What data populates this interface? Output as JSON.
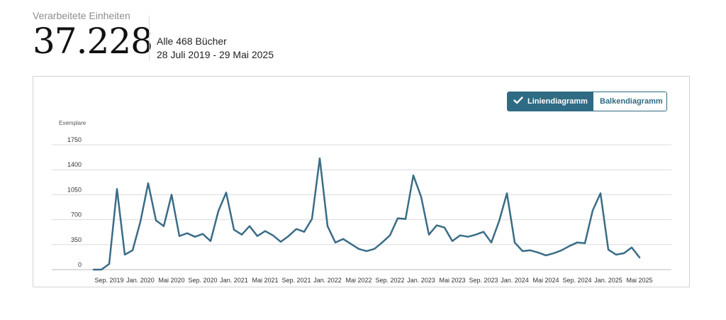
{
  "header": {
    "metric_label": "Verarbeitete Einheiten",
    "metric_value": "37.228",
    "scope": "Alle 468 Bücher",
    "date_range": "28 Juli 2019 - 29 Mai 2025"
  },
  "toggle": {
    "line_label": "Liniendiagramm",
    "bar_label": "Balkendiagramm",
    "selected": "line"
  },
  "colors": {
    "accent": "#2f6b84",
    "line": "#3a6c87",
    "grid": "#d9dcdf"
  },
  "chart_data": {
    "type": "line",
    "ylabel": "Exemplare",
    "ylim": [
      0,
      1750
    ],
    "yticks": [
      0,
      350,
      700,
      1050,
      1400,
      1750
    ],
    "xticks": [
      "Sep. 2019",
      "Jan. 2020",
      "Mai 2020",
      "Sep. 2020",
      "Jan. 2021",
      "Mai 2021",
      "Sep. 2021",
      "Jan. 2022",
      "Mai 2022",
      "Sep. 2022",
      "Jan. 2023",
      "Mai 2023",
      "Sep. 2023",
      "Jan. 2024",
      "Mai 2024",
      "Sep. 2024",
      "Jan. 2025",
      "Mai 2025"
    ],
    "x": [
      "2019-07",
      "2019-08",
      "2019-09",
      "2019-10",
      "2019-11",
      "2019-12",
      "2020-01",
      "2020-02",
      "2020-03",
      "2020-04",
      "2020-05",
      "2020-06",
      "2020-07",
      "2020-08",
      "2020-09",
      "2020-10",
      "2020-11",
      "2020-12",
      "2021-01",
      "2021-02",
      "2021-03",
      "2021-04",
      "2021-05",
      "2021-06",
      "2021-07",
      "2021-08",
      "2021-09",
      "2021-10",
      "2021-11",
      "2021-12",
      "2022-01",
      "2022-02",
      "2022-03",
      "2022-04",
      "2022-05",
      "2022-06",
      "2022-07",
      "2022-08",
      "2022-09",
      "2022-10",
      "2022-11",
      "2022-12",
      "2023-01",
      "2023-02",
      "2023-03",
      "2023-04",
      "2023-05",
      "2023-06",
      "2023-07",
      "2023-08",
      "2023-09",
      "2023-10",
      "2023-11",
      "2023-12",
      "2024-01",
      "2024-02",
      "2024-03",
      "2024-04",
      "2024-05",
      "2024-06",
      "2024-07",
      "2024-08",
      "2024-09",
      "2024-10",
      "2024-11",
      "2024-12",
      "2025-01",
      "2025-02",
      "2025-03",
      "2025-04",
      "2025-05"
    ],
    "series": [
      {
        "values": [
          0,
          0,
          80,
          1130,
          210,
          270,
          670,
          1210,
          690,
          610,
          1050,
          470,
          510,
          460,
          500,
          400,
          820,
          1080,
          560,
          490,
          610,
          470,
          540,
          480,
          390,
          470,
          570,
          530,
          710,
          1560,
          610,
          380,
          430,
          360,
          290,
          260,
          290,
          380,
          480,
          720,
          710,
          1320,
          1020,
          490,
          620,
          590,
          400,
          480,
          460,
          490,
          530,
          380,
          680,
          1070,
          380,
          260,
          270,
          240,
          200,
          230,
          270,
          330,
          380,
          370,
          830,
          1070,
          280,
          210,
          230,
          310,
          170
        ]
      }
    ]
  }
}
